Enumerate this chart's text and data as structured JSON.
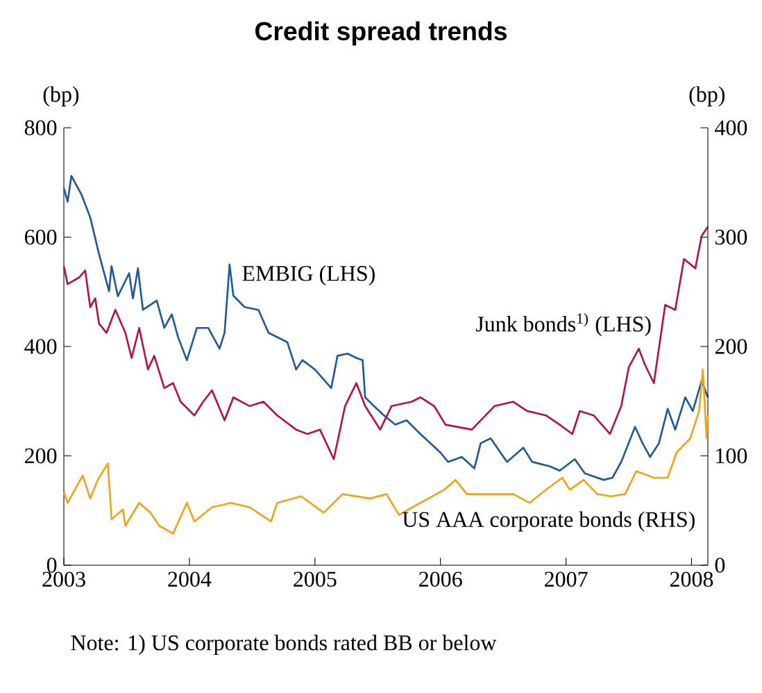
{
  "chart_data": {
    "type": "line",
    "title": "Credit spread trends",
    "ylabel": "(bp)",
    "y2label": "(bp)",
    "xlim": [
      2003,
      2008.13
    ],
    "xticks": [
      2003,
      2004,
      2005,
      2006,
      2007,
      2008
    ],
    "ylim": [
      0,
      800
    ],
    "yticks": [
      0,
      200,
      400,
      600,
      800
    ],
    "y2lim": [
      0,
      400
    ],
    "y2ticks": [
      0,
      100,
      200,
      300,
      400
    ],
    "marker": "none",
    "annotations": [
      "Note: 1) US corporate bonds rated BB or below"
    ],
    "series": [
      {
        "name": "EMBIG (LHS)",
        "color": "#1f5a9a",
        "x": [
          2003.0,
          2003.03,
          2003.06,
          2003.14,
          2003.21,
          2003.28,
          2003.36,
          2003.38,
          2003.43,
          2003.52,
          2003.55,
          2003.59,
          2003.63,
          2003.74,
          2003.8,
          2003.86,
          2003.91,
          2003.98,
          2004.06,
          2004.15,
          2004.24,
          2004.28,
          2004.32,
          2004.35,
          2004.44,
          2004.55,
          2004.63,
          2004.78,
          2004.85,
          2004.9,
          2005.0,
          2005.13,
          2005.18,
          2005.26,
          2005.33,
          2005.38,
          2005.4,
          2005.47,
          2005.55,
          2005.64,
          2005.73,
          2005.84,
          2006.0,
          2006.06,
          2006.17,
          2006.27,
          2006.32,
          2006.4,
          2006.53,
          2006.66,
          2006.73,
          2006.87,
          2006.95,
          2007.07,
          2007.15,
          2007.3,
          2007.37,
          2007.44,
          2007.55,
          2007.61,
          2007.67,
          2007.74,
          2007.81,
          2007.87,
          2007.95,
          2008.01,
          2008.08,
          2008.13
        ],
        "values": [
          690,
          665,
          712,
          678,
          636,
          569,
          501,
          547,
          492,
          534,
          488,
          543,
          467,
          484,
          434,
          459,
          417,
          375,
          434,
          434,
          396,
          425,
          550,
          493,
          472,
          467,
          425,
          408,
          358,
          375,
          358,
          324,
          383,
          387,
          379,
          375,
          307,
          291,
          274,
          257,
          265,
          240,
          206,
          189,
          198,
          177,
          223,
          232,
          189,
          215,
          189,
          181,
          173,
          194,
          168,
          156,
          160,
          189,
          253,
          223,
          198,
          223,
          286,
          248,
          307,
          282,
          337,
          307
        ]
      },
      {
        "name": "Junk bonds$^{1)}$ (LHS)",
        "color": "#b5124a",
        "x": [
          2003.0,
          2003.03,
          2003.12,
          2003.17,
          2003.21,
          2003.25,
          2003.28,
          2003.34,
          2003.41,
          2003.49,
          2003.54,
          2003.6,
          2003.67,
          2003.72,
          2003.8,
          2003.87,
          2003.93,
          2004.04,
          2004.11,
          2004.18,
          2004.28,
          2004.35,
          2004.48,
          2004.59,
          2004.7,
          2004.85,
          2004.94,
          2005.04,
          2005.15,
          2005.24,
          2005.33,
          2005.4,
          2005.52,
          2005.61,
          2005.77,
          2005.84,
          2005.95,
          2006.04,
          2006.25,
          2006.43,
          2006.58,
          2006.69,
          2006.84,
          2006.95,
          2007.05,
          2007.11,
          2007.22,
          2007.35,
          2007.44,
          2007.5,
          2007.58,
          2007.63,
          2007.7,
          2007.79,
          2007.87,
          2007.94,
          2008.03,
          2008.08,
          2008.13
        ],
        "values": [
          547,
          514,
          526,
          539,
          472,
          488,
          442,
          425,
          467,
          425,
          379,
          434,
          358,
          383,
          324,
          333,
          299,
          274,
          299,
          320,
          265,
          307,
          291,
          299,
          274,
          248,
          240,
          248,
          194,
          291,
          333,
          291,
          248,
          291,
          299,
          307,
          291,
          257,
          248,
          291,
          299,
          282,
          274,
          257,
          240,
          282,
          274,
          240,
          291,
          362,
          396,
          366,
          333,
          476,
          467,
          560,
          543,
          602,
          619
        ]
      },
      {
        "name": "US AAA corporate bonds (RHS)",
        "color": "#f5a21b",
        "axis": "y2",
        "x": [
          2003.0,
          2003.03,
          2003.15,
          2003.21,
          2003.27,
          2003.35,
          2003.38,
          2003.47,
          2003.49,
          2003.6,
          2003.69,
          2003.76,
          2003.87,
          2003.98,
          2004.04,
          2004.18,
          2004.33,
          2004.48,
          2004.65,
          2004.7,
          2004.89,
          2005.07,
          2005.22,
          2005.44,
          2005.57,
          2005.67,
          2005.84,
          2006.03,
          2006.12,
          2006.21,
          2006.4,
          2006.58,
          2006.71,
          2006.84,
          2006.97,
          2007.03,
          2007.14,
          2007.25,
          2007.36,
          2007.47,
          2007.56,
          2007.7,
          2007.81,
          2007.88,
          2007.99,
          2008.06,
          2008.09,
          2008.12,
          2008.13
        ],
        "values": [
          67,
          57,
          82,
          61,
          78,
          93,
          42,
          51,
          36,
          57,
          48,
          36,
          29,
          57,
          40,
          53,
          57,
          53,
          40,
          57,
          63,
          48,
          65,
          61,
          65,
          46,
          57,
          69,
          78,
          65,
          65,
          65,
          57,
          69,
          80,
          69,
          78,
          65,
          63,
          65,
          86,
          80,
          80,
          103,
          116,
          141,
          179,
          116,
          137
        ]
      }
    ]
  }
}
